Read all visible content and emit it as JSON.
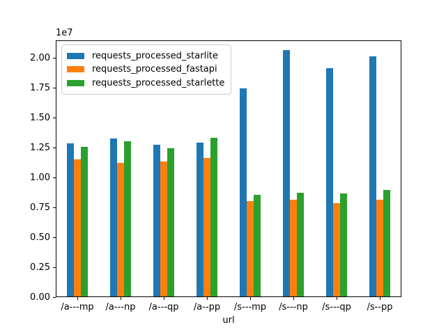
{
  "figure": {
    "background": "#ffffff",
    "spine_color": "#000000",
    "text_color": "#000000"
  },
  "chart_data": {
    "type": "bar",
    "title": "",
    "xlabel": "url",
    "ylabel": "",
    "offset_label": "1e7",
    "grid": false,
    "legend_position": "upper left",
    "categories": [
      "/a---mp",
      "/a---np",
      "/a---qp",
      "/a--pp",
      "/s---mp",
      "/s---np",
      "/s---qp",
      "/s--pp"
    ],
    "series": [
      {
        "name": "requests_processed_starlite",
        "color": "#1f77b4",
        "values": [
          12800000,
          13200000,
          12700000,
          12900000,
          17400000,
          20600000,
          19100000,
          20100000
        ]
      },
      {
        "name": "requests_processed_fastapi",
        "color": "#ff7f0e",
        "values": [
          11500000,
          11200000,
          11300000,
          11600000,
          8000000,
          8100000,
          7800000,
          8100000
        ]
      },
      {
        "name": "requests_processed_starlette",
        "color": "#2ca02c",
        "values": [
          12500000,
          13000000,
          12400000,
          13300000,
          8500000,
          8700000,
          8600000,
          8900000
        ]
      }
    ],
    "ylim": [
      0,
      21500000
    ],
    "yticks": [
      0,
      2500000,
      5000000,
      7500000,
      10000000,
      12500000,
      15000000,
      17500000,
      20000000
    ],
    "ytick_labels": [
      "0.00",
      "0.25",
      "0.50",
      "0.75",
      "1.00",
      "1.25",
      "1.50",
      "1.75",
      "2.00"
    ]
  }
}
